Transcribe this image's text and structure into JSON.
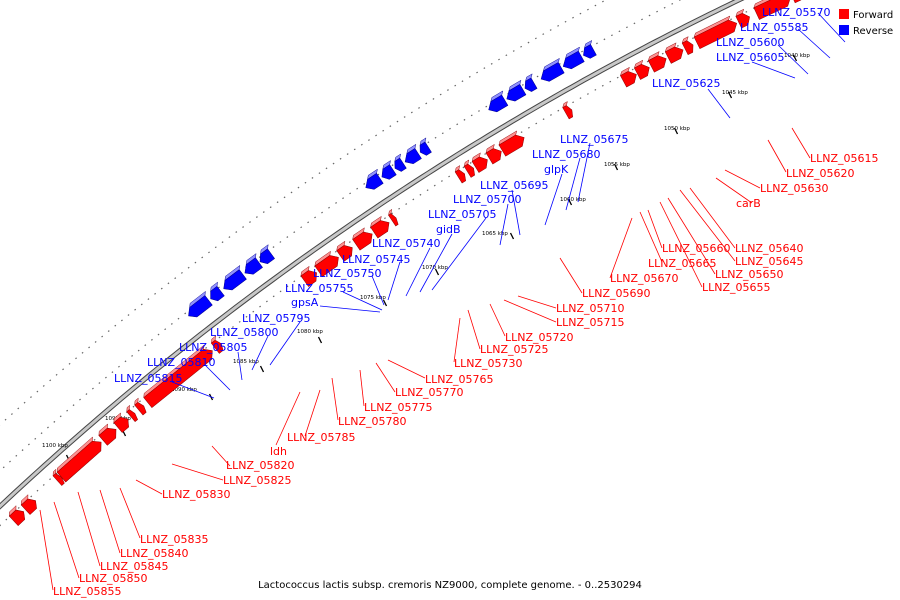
{
  "caption": "Lactococcus lactis subsp. cremoris NZ9000, complete genome. - 0..2530294",
  "legend": [
    {
      "label": "Forward",
      "color": "#ff0000"
    },
    {
      "label": "Reverse",
      "color": "#0000ff"
    }
  ],
  "colors": {
    "forward": "#ff0000",
    "reverse": "#0000ff",
    "backbone": "#888888"
  },
  "kbp_ticks": [
    "1040 kbp",
    "1045 kbp",
    "1050 kbp",
    "1055 kbp",
    "1060 kbp",
    "1065 kbp",
    "1070 kbp",
    "1075 kbp",
    "1080 kbp",
    "1085 kbp",
    "1090 kbp",
    "1095 kbp",
    "1100 kbp"
  ],
  "reverse_labels": [
    "LLNZ_05570",
    "LLNZ_05585",
    "LLNZ_05600",
    "LLNZ_05605",
    "LLNZ_05625",
    "LLNZ_05675",
    "LLNZ_05680",
    "glpK",
    "LLNZ_05695",
    "LLNZ_05700",
    "LLNZ_05705",
    "gidB",
    "LLNZ_05740",
    "LLNZ_05745",
    "LLNZ_05750",
    "LLNZ_05755",
    "gpsA",
    "LLNZ_05795",
    "LLNZ_05800",
    "LLNZ_05805",
    "LLNZ_05810",
    "LLNZ_05815"
  ],
  "forward_labels": [
    "LLNZ_05615",
    "LLNZ_05620",
    "LLNZ_05630",
    "carB",
    "LLNZ_05640",
    "LLNZ_05645",
    "LLNZ_05650",
    "LLNZ_05655",
    "LLNZ_05660",
    "LLNZ_05665",
    "LLNZ_05670",
    "LLNZ_05690",
    "LLNZ_05710",
    "LLNZ_05715",
    "LLNZ_05720",
    "LLNZ_05725",
    "LLNZ_05730",
    "LLNZ_05765",
    "LLNZ_05770",
    "LLNZ_05775",
    "LLNZ_05780",
    "LLNZ_05785",
    "ldh",
    "LLNZ_05820",
    "LLNZ_05825",
    "LLNZ_05830",
    "LLNZ_05835",
    "LLNZ_05840",
    "LLNZ_05845",
    "LLNZ_05850",
    "LLNZ_05855"
  ]
}
